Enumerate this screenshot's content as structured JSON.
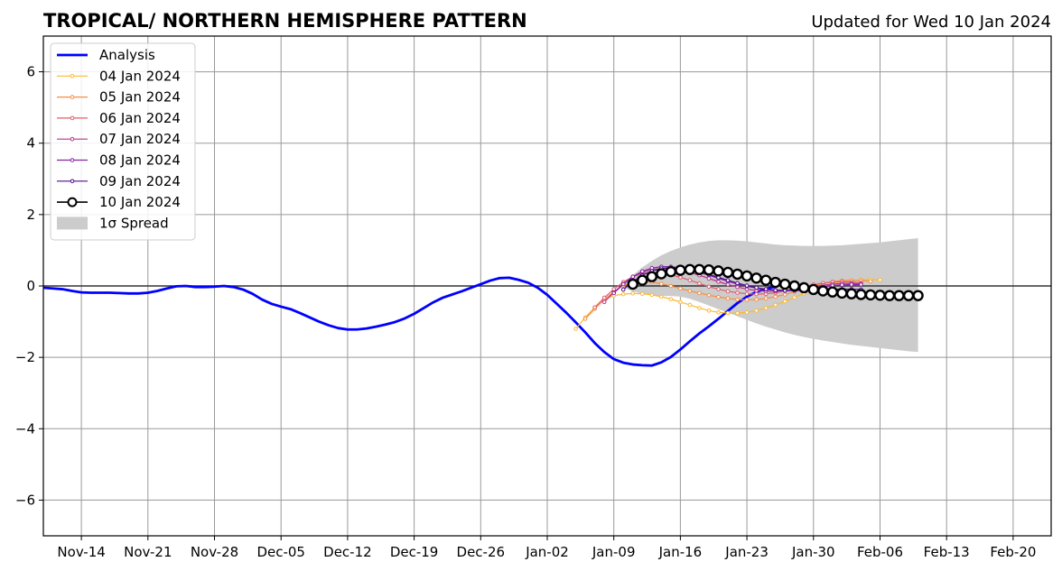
{
  "chart_data": {
    "type": "line",
    "title": "TROPICAL/ NORTHERN HEMISPHERE PATTERN",
    "updated_label": "Updated for Wed 10 Jan 2024",
    "xlabel": "",
    "ylabel": "",
    "xlim": [
      "2023-11-10",
      "2024-02-24"
    ],
    "ylim": [
      -7,
      7
    ],
    "grid": true,
    "legend_position": "top-left",
    "x_ticks": [
      {
        "date": "2023-11-14",
        "label": "Nov-14"
      },
      {
        "date": "2023-11-21",
        "label": "Nov-21"
      },
      {
        "date": "2023-11-28",
        "label": "Nov-28"
      },
      {
        "date": "2023-12-05",
        "label": "Dec-05"
      },
      {
        "date": "2023-12-12",
        "label": "Dec-12"
      },
      {
        "date": "2023-12-19",
        "label": "Dec-19"
      },
      {
        "date": "2023-12-26",
        "label": "Dec-26"
      },
      {
        "date": "2024-01-02",
        "label": "Jan-02"
      },
      {
        "date": "2024-01-09",
        "label": "Jan-09"
      },
      {
        "date": "2024-01-16",
        "label": "Jan-16"
      },
      {
        "date": "2024-01-23",
        "label": "Jan-23"
      },
      {
        "date": "2024-01-30",
        "label": "Jan-30"
      },
      {
        "date": "2024-02-06",
        "label": "Feb-06"
      },
      {
        "date": "2024-02-13",
        "label": "Feb-13"
      },
      {
        "date": "2024-02-20",
        "label": "Feb-20"
      }
    ],
    "y_ticks": [
      {
        "value": -6,
        "label": "−6"
      },
      {
        "value": -4,
        "label": "−4"
      },
      {
        "value": -2,
        "label": "−2"
      },
      {
        "value": 0,
        "label": "0"
      },
      {
        "value": 2,
        "label": "2"
      },
      {
        "value": 4,
        "label": "4"
      },
      {
        "value": 6,
        "label": "6"
      }
    ],
    "analysis": {
      "name": "Analysis",
      "color": "#0000ff",
      "start": "2023-11-10",
      "values": [
        -0.05,
        -0.07,
        -0.09,
        -0.14,
        -0.18,
        -0.19,
        -0.19,
        -0.19,
        -0.2,
        -0.21,
        -0.21,
        -0.19,
        -0.14,
        -0.07,
        -0.01,
        0.0,
        -0.03,
        -0.03,
        -0.02,
        0.0,
        -0.03,
        -0.1,
        -0.22,
        -0.38,
        -0.5,
        -0.58,
        -0.65,
        -0.76,
        -0.88,
        -1.0,
        -1.1,
        -1.18,
        -1.22,
        -1.22,
        -1.19,
        -1.14,
        -1.08,
        -1.01,
        -0.91,
        -0.78,
        -0.62,
        -0.46,
        -0.33,
        -0.24,
        -0.15,
        -0.05,
        0.05,
        0.15,
        0.22,
        0.23,
        0.17,
        0.09,
        -0.05,
        -0.25,
        -0.5,
        -0.75,
        -1.02,
        -1.3,
        -1.6,
        -1.85,
        -2.05,
        -2.15,
        -2.2,
        -2.22,
        -2.23,
        -2.14,
        -1.99,
        -1.78,
        -1.55,
        -1.33,
        -1.13,
        -0.92,
        -0.7,
        -0.48,
        -0.3,
        -0.17,
        -0.08,
        -0.02
      ]
    },
    "forecasts": [
      {
        "name": "04 Jan 2024",
        "color": "#fcb830",
        "start": "2024-01-05",
        "values": [
          -1.2,
          -0.88,
          -0.6,
          -0.38,
          -0.27,
          -0.23,
          -0.21,
          -0.22,
          -0.25,
          -0.3,
          -0.37,
          -0.45,
          -0.53,
          -0.62,
          -0.69,
          -0.74,
          -0.76,
          -0.76,
          -0.74,
          -0.69,
          -0.62,
          -0.53,
          -0.43,
          -0.32,
          -0.21,
          -0.1,
          -0.01,
          0.07,
          0.12,
          0.15,
          0.17,
          0.18,
          0.17
        ]
      },
      {
        "name": "05 Jan 2024",
        "color": "#f88d42",
        "start": "2024-01-06",
        "values": [
          -0.92,
          -0.64,
          -0.38,
          -0.16,
          0.01,
          0.1,
          0.13,
          0.11,
          0.06,
          0.0,
          -0.07,
          -0.14,
          -0.2,
          -0.26,
          -0.31,
          -0.35,
          -0.38,
          -0.39,
          -0.38,
          -0.35,
          -0.3,
          -0.24,
          -0.16,
          -0.08,
          0.0,
          0.07,
          0.12,
          0.15,
          0.16,
          0.15,
          0.13
        ]
      },
      {
        "name": "06 Jan 2024",
        "color": "#e05d6d",
        "start": "2024-01-07",
        "values": [
          -0.6,
          -0.33,
          -0.09,
          0.11,
          0.26,
          0.35,
          0.38,
          0.36,
          0.31,
          0.24,
          0.16,
          0.07,
          -0.02,
          -0.09,
          -0.15,
          -0.19,
          -0.22,
          -0.23,
          -0.22,
          -0.19,
          -0.14,
          -0.08,
          -0.02,
          0.04,
          0.08,
          0.11,
          0.12,
          0.11,
          0.09
        ]
      },
      {
        "name": "07 Jan 2024",
        "color": "#b83289",
        "start": "2024-01-08",
        "values": [
          -0.45,
          -0.18,
          0.06,
          0.25,
          0.38,
          0.46,
          0.49,
          0.48,
          0.44,
          0.38,
          0.3,
          0.21,
          0.12,
          0.04,
          -0.03,
          -0.09,
          -0.13,
          -0.15,
          -0.15,
          -0.13,
          -0.1,
          -0.06,
          -0.02,
          0.02,
          0.05,
          0.07,
          0.07,
          0.06
        ]
      },
      {
        "name": "08 Jan 2024",
        "color": "#8722a5",
        "start": "2024-01-09",
        "values": [
          -0.2,
          0.05,
          0.26,
          0.41,
          0.5,
          0.54,
          0.54,
          0.51,
          0.45,
          0.38,
          0.3,
          0.21,
          0.13,
          0.05,
          -0.01,
          -0.06,
          -0.1,
          -0.12,
          -0.12,
          -0.11,
          -0.08,
          -0.05,
          -0.02,
          0.01,
          0.03,
          0.04,
          0.04
        ]
      },
      {
        "name": "09 Jan 2024",
        "color": "#4b0c8c",
        "start": "2024-01-10",
        "values": [
          -0.1,
          0.12,
          0.3,
          0.42,
          0.49,
          0.51,
          0.5,
          0.46,
          0.4,
          0.32,
          0.24,
          0.16,
          0.08,
          0.01,
          -0.05,
          -0.09,
          -0.12,
          -0.13,
          -0.13,
          -0.12,
          -0.11,
          -0.1,
          -0.09,
          -0.09,
          -0.09,
          -0.1
        ]
      },
      {
        "name": "10 Jan 2024",
        "color": "#000000",
        "marker_face": "#ffffff",
        "start": "2024-01-11",
        "values": [
          0.05,
          0.16,
          0.26,
          0.34,
          0.4,
          0.44,
          0.46,
          0.46,
          0.45,
          0.42,
          0.38,
          0.33,
          0.28,
          0.22,
          0.16,
          0.1,
          0.05,
          0.0,
          -0.05,
          -0.1,
          -0.14,
          -0.17,
          -0.2,
          -0.22,
          -0.24,
          -0.25,
          -0.26,
          -0.27,
          -0.27,
          -0.27,
          -0.27
        ]
      }
    ],
    "spread": {
      "name": "1σ Spread",
      "color": "#cccccc",
      "x": [
        "2024-01-10",
        "2024-01-11",
        "2024-01-12",
        "2024-01-13",
        "2024-01-14",
        "2024-01-15",
        "2024-01-16",
        "2024-01-17",
        "2024-01-18",
        "2024-01-19",
        "2024-01-20",
        "2024-01-21",
        "2024-01-22",
        "2024-01-23",
        "2024-01-24",
        "2024-01-25",
        "2024-01-26",
        "2024-01-27",
        "2024-01-28",
        "2024-01-29",
        "2024-01-30",
        "2024-01-31",
        "2024-02-01",
        "2024-02-02",
        "2024-02-03",
        "2024-02-04",
        "2024-02-05",
        "2024-02-06",
        "2024-02-07",
        "2024-02-08",
        "2024-02-09",
        "2024-02-10"
      ],
      "upper": [
        0.05,
        0.3,
        0.52,
        0.7,
        0.86,
        0.98,
        1.08,
        1.16,
        1.22,
        1.26,
        1.28,
        1.28,
        1.27,
        1.25,
        1.22,
        1.19,
        1.16,
        1.14,
        1.13,
        1.12,
        1.12,
        1.12,
        1.13,
        1.14,
        1.16,
        1.18,
        1.2,
        1.22,
        1.25,
        1.28,
        1.31,
        1.34
      ],
      "lower": [
        -0.05,
        -0.15,
        -0.22,
        -0.26,
        -0.28,
        -0.28,
        -0.3,
        -0.36,
        -0.45,
        -0.55,
        -0.65,
        -0.75,
        -0.85,
        -0.95,
        -1.05,
        -1.14,
        -1.22,
        -1.3,
        -1.37,
        -1.43,
        -1.48,
        -1.53,
        -1.57,
        -1.61,
        -1.65,
        -1.68,
        -1.71,
        -1.74,
        -1.77,
        -1.8,
        -1.83,
        -1.85
      ]
    }
  }
}
